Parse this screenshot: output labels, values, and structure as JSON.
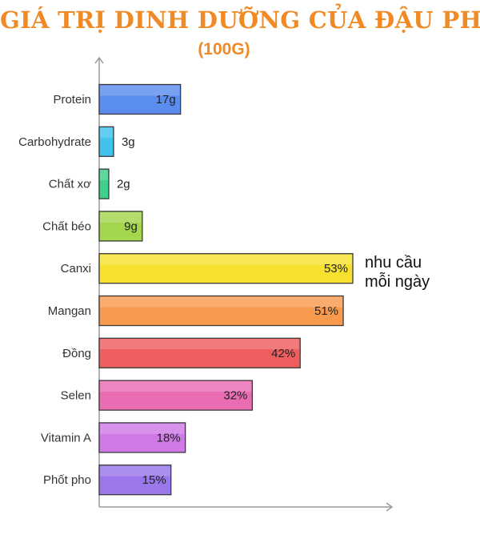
{
  "title": "GIÁ TRỊ DINH DƯỠNG CỦA ĐẬU PHỤ",
  "subtitle": "(100G)",
  "note": {
    "line1": "nhu cầu",
    "line2": "mỗi ngày"
  },
  "chart_data": {
    "type": "bar",
    "orientation": "horizontal",
    "categories": [
      "Protein",
      "Carbohydrate",
      "Chất xơ",
      "Chất béo",
      "Canxi",
      "Mangan",
      "Đồng",
      "Selen",
      "Vitamin A",
      "Phốt pho"
    ],
    "values": [
      17,
      3,
      2,
      9,
      53,
      51,
      42,
      32,
      18,
      15
    ],
    "labels": [
      "17g",
      "3g",
      "2g",
      "9g",
      "53%",
      "51%",
      "42%",
      "32%",
      "18%",
      "15%"
    ],
    "colors": [
      "#5b8def",
      "#3fc3ee",
      "#3ecf8a",
      "#a4d64e",
      "#f7e12e",
      "#f79a4d",
      "#ee5e5e",
      "#ea6cb3",
      "#d07ae8",
      "#9a77ea"
    ],
    "label_inside": [
      true,
      false,
      false,
      true,
      true,
      true,
      true,
      true,
      true,
      true
    ],
    "xlim": [
      0,
      60
    ],
    "grid": false,
    "legend": "none"
  }
}
